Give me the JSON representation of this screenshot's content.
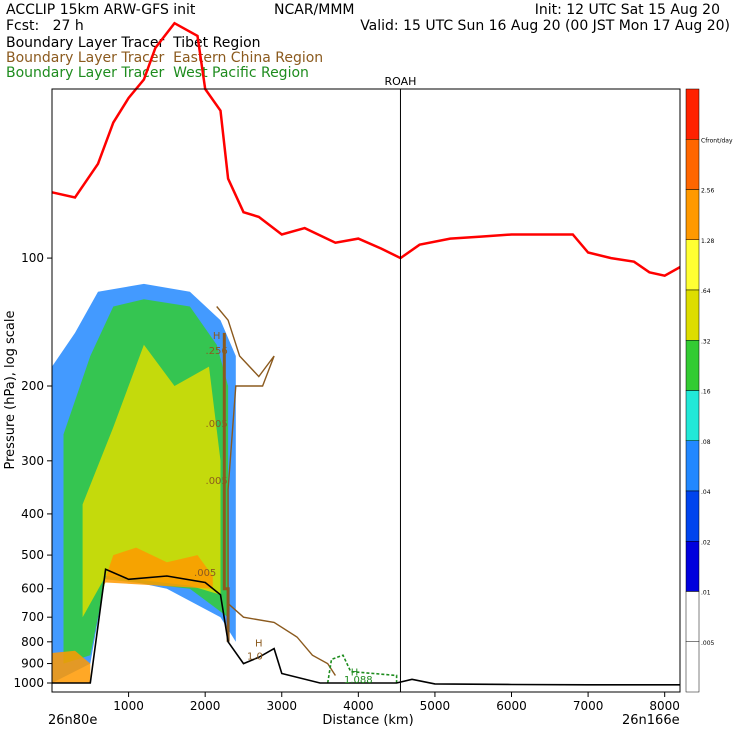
{
  "header": {
    "left_line1": "ACCLIP 15km ARW-GFS init",
    "center_line1": "NCAR/MMM",
    "right_line1": "Init: 12 UTC Sat 15 Aug 20",
    "left_line2": "Fcst:   27 h",
    "right_line2": "Valid: 15 UTC Sun 16 Aug 20 (00 JST Mon 17 Aug 20)"
  },
  "legend": [
    {
      "label": "Boundary Layer Tracer  Tibet Region",
      "color": "#000000"
    },
    {
      "label": "Boundary Layer Tracer  Eastern China Region",
      "color": "#8B5A1E"
    },
    {
      "label": "Boundary Layer Tracer  West Pacific Region",
      "color": "#1E8C1E"
    }
  ],
  "chart_data": {
    "type": "area",
    "title": "",
    "xlabel": "Distance (km)",
    "ylabel": "Pressure (hPa), log scale",
    "xlim": [
      0,
      8200
    ],
    "ylim": [
      1050,
      40
    ],
    "log_y": true,
    "x_ticks": [
      "1000",
      "2000",
      "3000",
      "4000",
      "5000",
      "6000",
      "7000",
      "8000"
    ],
    "y_ticks": [
      "100",
      "200",
      "300",
      "400",
      "500",
      "600",
      "700",
      "800",
      "900",
      "1000"
    ],
    "start_label": "26n80e",
    "end_label": "26n166e",
    "station": {
      "label": "ROAH",
      "x": 4550
    },
    "tropopause": {
      "color": "#ff0000",
      "x": [
        0,
        300,
        600,
        800,
        1000,
        1200,
        1350,
        1600,
        1900,
        2000,
        2200,
        2300,
        2500,
        2700,
        3000,
        3300,
        3700,
        4000,
        4300,
        4550,
        4800,
        5200,
        5600,
        6000,
        6800,
        7000,
        7300,
        7600,
        7800,
        8000,
        8200
      ],
      "p": [
        70,
        72,
        60,
        48,
        42,
        38,
        32,
        28,
        30,
        40,
        45,
        65,
        78,
        80,
        88,
        85,
        92,
        90,
        95,
        100,
        93,
        90,
        89,
        88,
        88,
        97,
        100,
        102,
        108,
        110,
        105
      ]
    },
    "terrain": {
      "x": [
        0,
        500,
        700,
        1000,
        1500,
        2000,
        2200,
        2300,
        2500,
        2700,
        2900,
        3000,
        3500,
        4000,
        4500,
        4700,
        5000,
        6000,
        7000,
        8200
      ],
      "p": [
        1000,
        1000,
        540,
        570,
        560,
        580,
        620,
        800,
        900,
        870,
        830,
        950,
        1000,
        1000,
        1000,
        980,
        1005,
        1008,
        1010,
        1010
      ]
    },
    "colorbar": {
      "colors": [
        "#ffffff",
        "#ffffff",
        "#0000dd",
        "#0044ee",
        "#2288ff",
        "#22e8d8",
        "#33cc33",
        "#dddd00",
        "#ffff33",
        "#ff9900",
        "#ff6600",
        "#ff2200"
      ],
      "labels": [
        ".005",
        ".01",
        ".02",
        ".04",
        ".08",
        ".16",
        ".32",
        ".64",
        "1.28",
        "2.56",
        "Cfront/day"
      ]
    },
    "contour_labels": [
      {
        "text": "H",
        "x": 2150,
        "p": 155,
        "color": "#8B5A1E"
      },
      {
        "text": ".256",
        "x": 2150,
        "p": 168,
        "color": "#8B5A1E"
      },
      {
        "text": ".005",
        "x": 2150,
        "p": 250,
        "color": "#8B5A1E"
      },
      {
        "text": ".005",
        "x": 2150,
        "p": 340,
        "color": "#8B5A1E"
      },
      {
        "text": ".005",
        "x": 2000,
        "p": 560,
        "color": "#8B5A1E"
      },
      {
        "text": "H",
        "x": 2700,
        "p": 820,
        "color": "#8B5A1E"
      },
      {
        "text": "1.0",
        "x": 2650,
        "p": 880,
        "color": "#8B5A1E"
      },
      {
        "text": "H",
        "x": 3950,
        "p": 960,
        "color": "#1E8C1E"
      },
      {
        "text": "1.088",
        "x": 4000,
        "p": 1000,
        "color": "#1E8C1E"
      }
    ]
  }
}
